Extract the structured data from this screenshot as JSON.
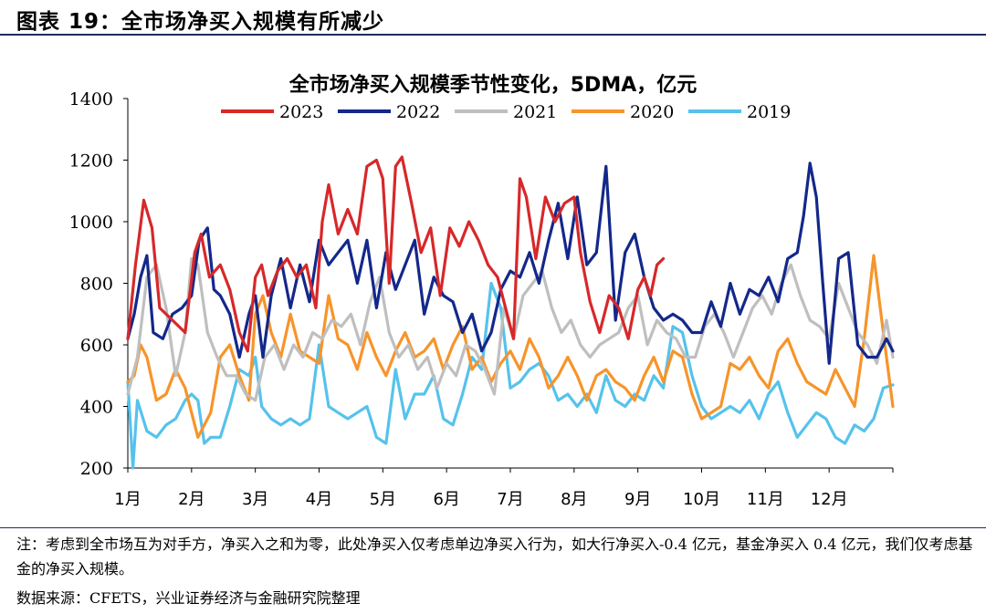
{
  "figure": {
    "title": "图表 19：全市场净买入规模有所减少",
    "note": "注：考虑到全市场互为对手方，净买入之和为零，此处净买入仅考虑单边净买入行为，如大行净买入-0.4 亿元，基金净买入 0.4 亿元，我们仅考虑基金的净买入规模。",
    "source": "数据来源：CFETS，兴业证券经济与金融研究院整理"
  },
  "chart_data": {
    "type": "line",
    "title": "全市场净买入规模季节性变化，5DMA，亿元",
    "ylim": [
      200,
      1400
    ],
    "yticks": [
      200,
      400,
      600,
      800,
      1000,
      1200,
      1400
    ],
    "xlim": [
      1,
      13
    ],
    "categories": [
      "1月",
      "2月",
      "3月",
      "4月",
      "5月",
      "6月",
      "7月",
      "8月",
      "9月",
      "10月",
      "11月",
      "12月"
    ],
    "legend_position": "top",
    "grid": false,
    "series": [
      {
        "name": "2023",
        "color": "#d7282a",
        "x": [
          1.0,
          1.12,
          1.25,
          1.38,
          1.5,
          1.7,
          1.9,
          2.05,
          2.15,
          2.28,
          2.45,
          2.6,
          2.75,
          2.88,
          3.0,
          3.1,
          3.2,
          3.35,
          3.5,
          3.65,
          3.8,
          3.95,
          4.05,
          4.15,
          4.3,
          4.45,
          4.6,
          4.75,
          4.9,
          5.0,
          5.1,
          5.2,
          5.3,
          5.45,
          5.6,
          5.75,
          5.9,
          6.05,
          6.2,
          6.35,
          6.5,
          6.65,
          6.8,
          6.95,
          7.05,
          7.15,
          7.25,
          7.4,
          7.55,
          7.7,
          7.85,
          8.0,
          8.1,
          8.25,
          8.4,
          8.55,
          8.7,
          8.85,
          9.0,
          9.1,
          9.2,
          9.3,
          9.4
        ],
        "values": [
          620,
          860,
          1070,
          980,
          720,
          680,
          640,
          900,
          960,
          820,
          860,
          780,
          640,
          580,
          820,
          860,
          760,
          840,
          880,
          820,
          860,
          720,
          1000,
          1120,
          960,
          1040,
          960,
          1180,
          1200,
          1140,
          800,
          1180,
          1210,
          1060,
          900,
          980,
          760,
          980,
          920,
          1000,
          940,
          860,
          820,
          700,
          620,
          1140,
          1080,
          880,
          1080,
          1000,
          1060,
          1080,
          900,
          740,
          640,
          760,
          720,
          620,
          780,
          820,
          760,
          860,
          880
        ]
      },
      {
        "name": "2022",
        "color": "#13288a",
        "x": [
          1.0,
          1.1,
          1.2,
          1.3,
          1.4,
          1.55,
          1.7,
          1.85,
          2.0,
          2.12,
          2.25,
          2.35,
          2.45,
          2.6,
          2.75,
          2.9,
          3.0,
          3.12,
          3.25,
          3.4,
          3.55,
          3.7,
          3.85,
          4.0,
          4.15,
          4.3,
          4.45,
          4.6,
          4.75,
          4.9,
          5.05,
          5.2,
          5.35,
          5.5,
          5.65,
          5.8,
          5.95,
          6.1,
          6.25,
          6.4,
          6.55,
          6.7,
          6.85,
          7.0,
          7.15,
          7.3,
          7.45,
          7.6,
          7.75,
          7.9,
          8.05,
          8.2,
          8.35,
          8.5,
          8.65,
          8.8,
          8.95,
          9.1,
          9.25,
          9.4,
          9.55,
          9.7,
          9.85,
          10.0,
          10.15,
          10.3,
          10.45,
          10.6,
          10.75,
          10.9,
          11.05,
          11.2,
          11.35,
          11.5,
          11.6,
          11.7,
          11.8,
          11.9,
          12.0,
          12.15,
          12.3,
          12.45,
          12.6,
          12.75,
          12.9,
          13.0
        ],
        "values": [
          620,
          700,
          820,
          890,
          640,
          620,
          700,
          720,
          760,
          940,
          980,
          780,
          760,
          700,
          560,
          700,
          760,
          560,
          760,
          880,
          720,
          860,
          740,
          940,
          860,
          900,
          940,
          800,
          940,
          720,
          900,
          780,
          860,
          940,
          700,
          820,
          760,
          740,
          640,
          700,
          580,
          640,
          780,
          840,
          820,
          900,
          800,
          940,
          1060,
          880,
          1080,
          860,
          900,
          1180,
          680,
          900,
          960,
          820,
          720,
          680,
          700,
          680,
          640,
          640,
          740,
          660,
          800,
          700,
          780,
          760,
          820,
          740,
          880,
          900,
          1020,
          1190,
          1080,
          800,
          540,
          880,
          900,
          600,
          560,
          560,
          620,
          580
        ]
      },
      {
        "name": "2021",
        "color": "#bfbfbf",
        "x": [
          1.0,
          1.15,
          1.3,
          1.45,
          1.6,
          1.75,
          1.9,
          2.0,
          2.1,
          2.25,
          2.4,
          2.55,
          2.7,
          2.85,
          3.0,
          3.15,
          3.3,
          3.45,
          3.6,
          3.75,
          3.9,
          4.05,
          4.2,
          4.35,
          4.5,
          4.65,
          4.8,
          4.95,
          5.1,
          5.25,
          5.4,
          5.55,
          5.7,
          5.85,
          6.0,
          6.15,
          6.3,
          6.45,
          6.6,
          6.75,
          6.9,
          7.05,
          7.2,
          7.35,
          7.5,
          7.65,
          7.8,
          7.95,
          8.1,
          8.25,
          8.4,
          8.55,
          8.7,
          8.85,
          9.0,
          9.15,
          9.3,
          9.45,
          9.6,
          9.75,
          9.9,
          10.05,
          10.2,
          10.35,
          10.5,
          10.65,
          10.8,
          10.95,
          11.1,
          11.25,
          11.4,
          11.55,
          11.7,
          11.85,
          12.0,
          12.15,
          12.3,
          12.45,
          12.6,
          12.75,
          12.9,
          13.0
        ],
        "values": [
          440,
          560,
          820,
          860,
          720,
          500,
          640,
          880,
          860,
          640,
          560,
          500,
          500,
          440,
          420,
          560,
          600,
          520,
          600,
          560,
          640,
          620,
          680,
          660,
          700,
          600,
          740,
          820,
          640,
          560,
          600,
          520,
          560,
          460,
          540,
          500,
          600,
          580,
          520,
          440,
          720,
          620,
          760,
          800,
          840,
          720,
          640,
          680,
          600,
          560,
          600,
          620,
          640,
          720,
          760,
          600,
          680,
          640,
          620,
          560,
          560,
          660,
          700,
          640,
          560,
          640,
          720,
          760,
          700,
          800,
          860,
          760,
          680,
          660,
          620,
          800,
          720,
          640,
          600,
          540,
          680,
          560
        ]
      },
      {
        "name": "2020",
        "color": "#f7942a",
        "x": [
          1.0,
          1.1,
          1.2,
          1.3,
          1.45,
          1.6,
          1.75,
          1.9,
          2.0,
          2.1,
          2.2,
          2.3,
          2.45,
          2.6,
          2.75,
          2.9,
          3.0,
          3.12,
          3.25,
          3.4,
          3.55,
          3.7,
          3.85,
          4.0,
          4.15,
          4.3,
          4.45,
          4.6,
          4.75,
          4.9,
          5.05,
          5.2,
          5.35,
          5.5,
          5.65,
          5.8,
          5.95,
          6.1,
          6.25,
          6.4,
          6.55,
          6.7,
          6.85,
          7.0,
          7.15,
          7.3,
          7.45,
          7.6,
          7.75,
          7.9,
          8.05,
          8.2,
          8.35,
          8.5,
          8.65,
          8.8,
          8.95,
          9.1,
          9.25,
          9.4,
          9.55,
          9.7,
          9.85,
          10.0,
          10.15,
          10.3,
          10.45,
          10.6,
          10.75,
          10.9,
          11.05,
          11.2,
          11.35,
          11.5,
          11.65,
          11.8,
          11.95,
          12.1,
          12.25,
          12.4,
          12.55,
          12.7,
          12.85,
          13.0
        ],
        "values": [
          480,
          500,
          600,
          560,
          420,
          440,
          520,
          460,
          380,
          300,
          340,
          380,
          560,
          600,
          500,
          420,
          700,
          760,
          640,
          560,
          700,
          580,
          560,
          540,
          760,
          620,
          600,
          520,
          640,
          560,
          500,
          580,
          640,
          560,
          580,
          620,
          520,
          600,
          660,
          520,
          560,
          480,
          540,
          580,
          520,
          620,
          560,
          460,
          500,
          560,
          500,
          420,
          500,
          520,
          480,
          460,
          420,
          500,
          560,
          480,
          580,
          560,
          440,
          360,
          380,
          400,
          540,
          520,
          560,
          500,
          460,
          580,
          620,
          540,
          480,
          460,
          440,
          520,
          460,
          400,
          620,
          890,
          640,
          400
        ]
      },
      {
        "name": "2019",
        "color": "#56c2ec",
        "x": [
          1.0,
          1.08,
          1.15,
          1.3,
          1.45,
          1.6,
          1.75,
          1.9,
          2.0,
          2.1,
          2.2,
          2.3,
          2.45,
          2.6,
          2.75,
          2.9,
          3.0,
          3.1,
          3.25,
          3.4,
          3.55,
          3.7,
          3.85,
          4.0,
          4.15,
          4.3,
          4.45,
          4.6,
          4.75,
          4.9,
          5.05,
          5.2,
          5.35,
          5.5,
          5.65,
          5.8,
          5.95,
          6.1,
          6.25,
          6.4,
          6.55,
          6.7,
          6.85,
          7.0,
          7.15,
          7.3,
          7.45,
          7.6,
          7.75,
          7.9,
          8.05,
          8.2,
          8.35,
          8.5,
          8.65,
          8.8,
          8.95,
          9.1,
          9.25,
          9.4,
          9.55,
          9.7,
          9.85,
          10.0,
          10.15,
          10.3,
          10.45,
          10.6,
          10.75,
          10.9,
          11.05,
          11.2,
          11.35,
          11.5,
          11.65,
          11.8,
          11.95,
          12.1,
          12.25,
          12.4,
          12.55,
          12.7,
          12.85,
          13.0
        ],
        "values": [
          480,
          200,
          420,
          320,
          300,
          340,
          360,
          420,
          440,
          420,
          280,
          300,
          300,
          400,
          520,
          500,
          560,
          400,
          360,
          340,
          360,
          340,
          360,
          600,
          400,
          380,
          360,
          380,
          400,
          300,
          280,
          520,
          360,
          440,
          440,
          500,
          360,
          340,
          440,
          560,
          520,
          800,
          720,
          460,
          480,
          520,
          540,
          500,
          420,
          440,
          400,
          440,
          380,
          500,
          420,
          400,
          440,
          420,
          500,
          460,
          660,
          640,
          500,
          400,
          360,
          380,
          400,
          380,
          420,
          360,
          440,
          480,
          380,
          300,
          340,
          380,
          360,
          300,
          280,
          340,
          320,
          360,
          460,
          470
        ]
      }
    ]
  }
}
